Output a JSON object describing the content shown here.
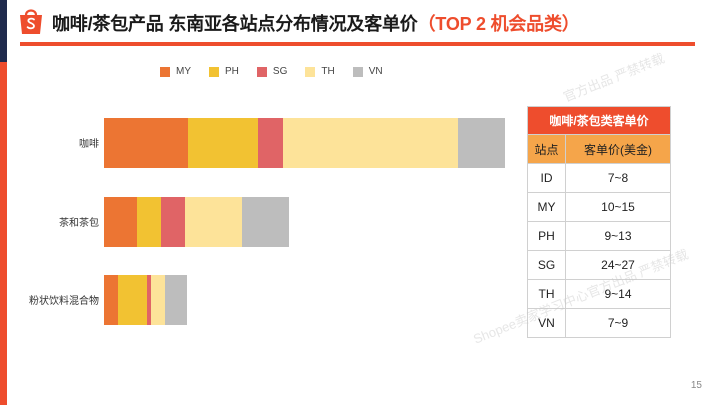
{
  "title": {
    "main": "咖啡/茶包产品 东南亚各站点分布情况及客单价",
    "highlight": "（TOP 2 机会品类）"
  },
  "colors": {
    "accent": "#ee4d2d",
    "MY": "#ec7533",
    "PH": "#f2c232",
    "SG": "#e06466",
    "TH": "#fde399",
    "VN": "#bdbdbd"
  },
  "chart_data": {
    "type": "bar",
    "orientation": "horizontal",
    "stacked": true,
    "categories": [
      "咖啡",
      "茶和茶包",
      "粉状饮料混合物"
    ],
    "series": [
      {
        "name": "MY",
        "values": [
          84,
          33,
          14
        ]
      },
      {
        "name": "PH",
        "values": [
          70,
          24,
          29
        ]
      },
      {
        "name": "SG",
        "values": [
          25,
          24,
          4
        ]
      },
      {
        "name": "TH",
        "values": [
          175,
          57,
          14
        ]
      },
      {
        "name": "VN",
        "values": [
          47,
          47,
          22
        ]
      }
    ],
    "legend_position": "top",
    "grid": false,
    "xlabel": "",
    "ylabel": ""
  },
  "price_table": {
    "caption": "咖啡/茶包类客单价",
    "headers": [
      "站点",
      "客单价(美金)"
    ],
    "rows": [
      {
        "site": "ID",
        "price": "7~8"
      },
      {
        "site": "MY",
        "price": "10~15"
      },
      {
        "site": "PH",
        "price": "9~13"
      },
      {
        "site": "SG",
        "price": "24~27"
      },
      {
        "site": "TH",
        "price": "9~14"
      },
      {
        "site": "VN",
        "price": "7~9"
      }
    ]
  },
  "watermark": {
    "text1": "Shopee卖家学习中心官方出品 严禁转载",
    "text2": "官方出品 严禁转载"
  },
  "page_number": "15"
}
